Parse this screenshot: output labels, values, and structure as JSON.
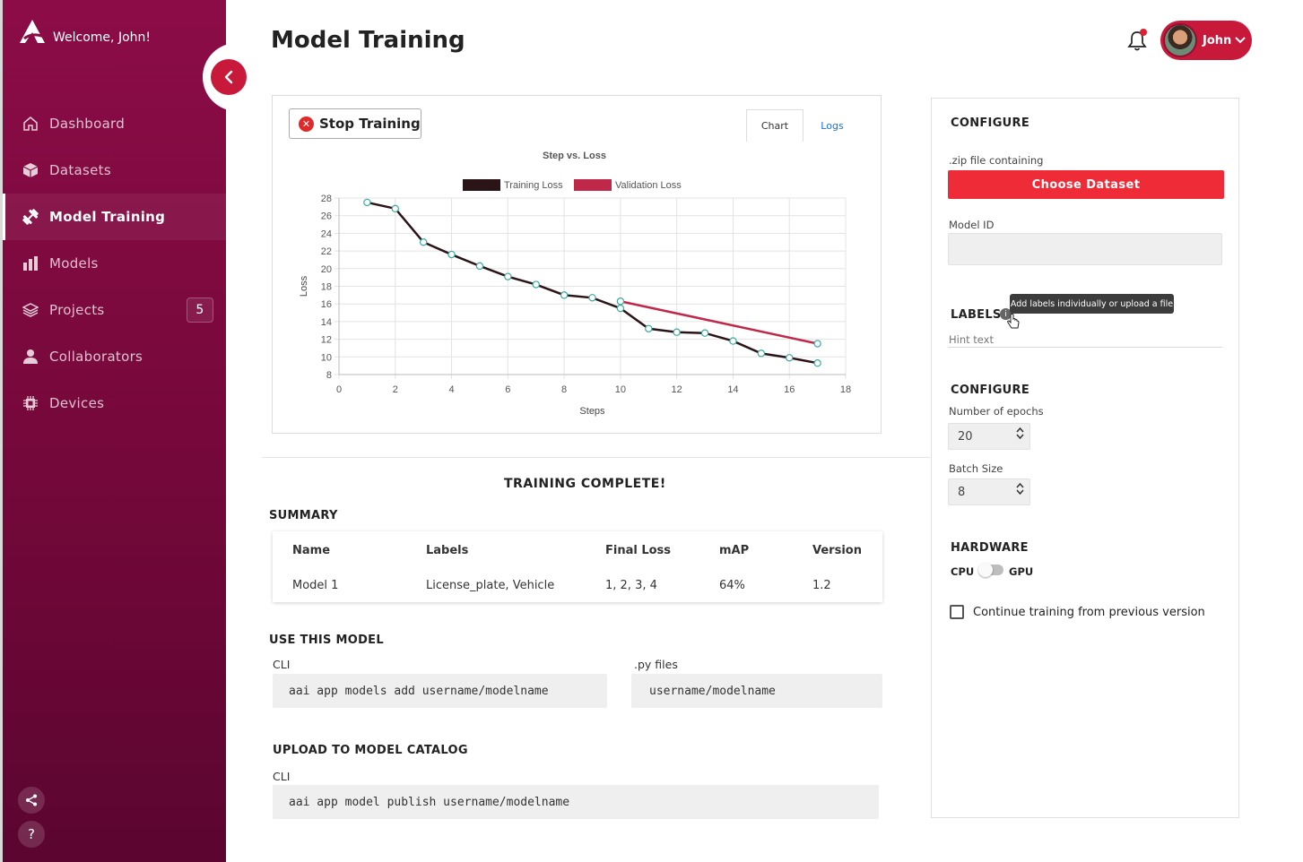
{
  "sidebar": {
    "welcome": "Welcome, John!",
    "items": [
      {
        "label": "Dashboard",
        "icon": "home-icon"
      },
      {
        "label": "Datasets",
        "icon": "cube-icon"
      },
      {
        "label": "Model Training",
        "icon": "dumbbell-icon"
      },
      {
        "label": "Models",
        "icon": "models-icon"
      },
      {
        "label": "Projects",
        "icon": "layers-icon",
        "badge": "5"
      },
      {
        "label": "Collaborators",
        "icon": "users-icon"
      },
      {
        "label": "Devices",
        "icon": "chip-icon"
      }
    ],
    "help_label": "?"
  },
  "header": {
    "title": "Model Training",
    "user_name": "John"
  },
  "chart_panel": {
    "stop_label": "Stop Training",
    "tabs": [
      "Chart",
      "Logs"
    ]
  },
  "chart_data": {
    "type": "line",
    "title": "Step vs. Loss",
    "xlabel": "Steps",
    "ylabel": "Loss",
    "xlim": [
      0,
      18
    ],
    "ylim": [
      8,
      28
    ],
    "xticks": [
      0,
      2,
      4,
      6,
      8,
      10,
      12,
      14,
      16,
      18
    ],
    "yticks": [
      8,
      10,
      12,
      14,
      16,
      18,
      20,
      22,
      24,
      26,
      28
    ],
    "grid": true,
    "legend": "top-center",
    "series": [
      {
        "name": "Training Loss",
        "color": "#2b1418",
        "x": [
          1,
          2,
          3,
          4,
          5,
          6,
          7,
          8,
          9,
          10,
          11,
          12,
          13,
          14,
          15,
          16,
          17
        ],
        "y": [
          27.5,
          26.8,
          23.0,
          21.6,
          20.3,
          19.1,
          18.2,
          17.0,
          16.7,
          15.5,
          13.2,
          12.8,
          12.7,
          11.8,
          10.4,
          9.9,
          9.3
        ]
      },
      {
        "name": "Validation Loss",
        "color": "#c0284a",
        "x": [
          10,
          17
        ],
        "y": [
          16.3,
          11.5
        ]
      }
    ]
  },
  "results": {
    "status": "TRAINING COMPLETE!",
    "summary_title": "SUMMARY",
    "columns": [
      "Name",
      "Labels",
      "Final Loss",
      "mAP",
      "Version"
    ],
    "row": [
      "Model 1",
      "License_plate, Vehicle",
      "1, 2, 3, 4",
      "64%",
      "1.2"
    ],
    "use_title": "USE THIS MODEL",
    "cli_label": "CLI",
    "cli_cmd": "aai app models add username/modelname",
    "py_label": ".py files",
    "py_value": "username/modelname",
    "upload_title": "UPLOAD TO MODEL CATALOG",
    "upload_cli_label": "CLI",
    "upload_cmd": "aai app model publish username/modelname"
  },
  "configure": {
    "heading": "CONFIGURE",
    "zip_label": ".zip file containing",
    "choose_label": "Choose Dataset",
    "model_id_label": "Model ID",
    "labels_heading": "LABELS",
    "labels_tooltip": "Add labels individually or upload a file",
    "hint_text": "Hint text",
    "configure2_heading": "CONFIGURE",
    "epochs_label": "Number of epochs",
    "epochs_value": "20",
    "batch_label": "Batch Size",
    "batch_value": "8",
    "hardware_heading": "HARDWARE",
    "cpu_label": "CPU",
    "gpu_label": "GPU",
    "continue_label": "Continue training from previous version"
  },
  "colors": {
    "sidebar": "#8c0c47",
    "accent": "#c8193b",
    "primary_button": "#ee2b37"
  }
}
